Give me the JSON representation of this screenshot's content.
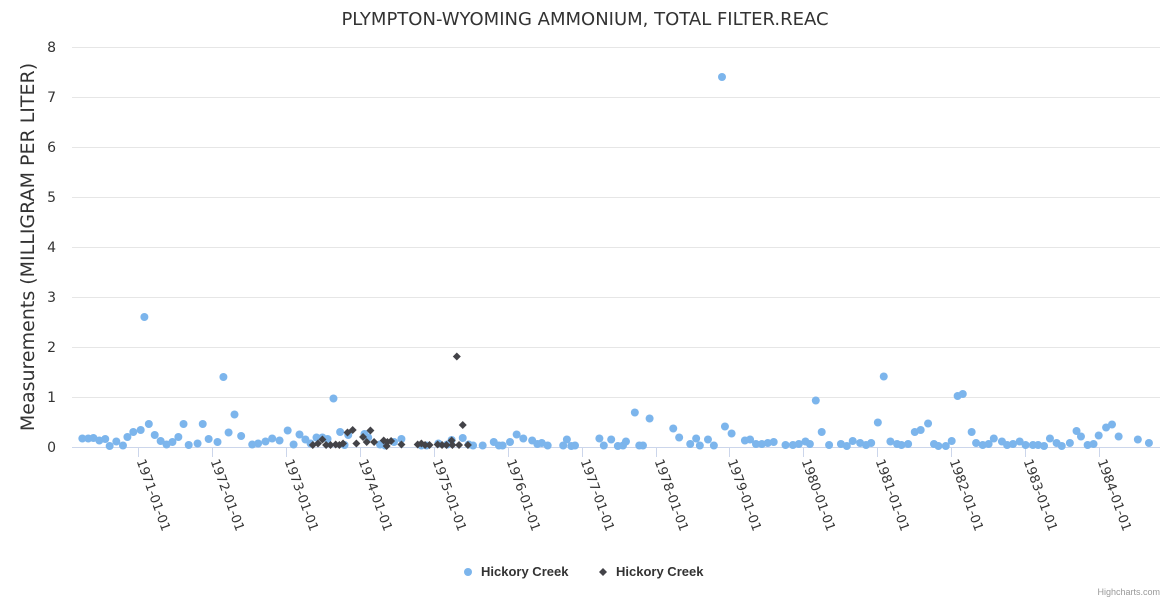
{
  "chart_data": {
    "type": "scatter",
    "title": "PLYMPTON-WYOMING AMMONIUM, TOTAL FILTER.REAC",
    "xlabel": "",
    "ylabel": "Measurements (MILLIGRAM PER LITER)",
    "x_unit": "decimal year",
    "xlim": [
      1970.1,
      1984.83
    ],
    "ylim": [
      0,
      8
    ],
    "yticks": [
      0,
      1,
      2,
      3,
      4,
      5,
      6,
      7,
      8
    ],
    "xticks": [
      1971,
      1972,
      1973,
      1974,
      1975,
      1976,
      1977,
      1978,
      1979,
      1980,
      1981,
      1982,
      1983,
      1984
    ],
    "xtick_labels": [
      "1971-01-01",
      "1972-01-01",
      "1973-01-01",
      "1974-01-01",
      "1975-01-01",
      "1976-01-01",
      "1977-01-01",
      "1978-01-01",
      "1979-01-01",
      "1980-01-01",
      "1981-01-01",
      "1982-01-01",
      "1983-01-01",
      "1984-01-01"
    ],
    "grid": true,
    "legend_placement": "bottom-center",
    "series": [
      {
        "name": "Hickory Creek",
        "color": "#7cb5ec",
        "marker": "circle",
        "points": [
          [
            1970.24,
            0.17
          ],
          [
            1970.32,
            0.17
          ],
          [
            1970.39,
            0.18
          ],
          [
            1970.47,
            0.13
          ],
          [
            1970.55,
            0.16
          ],
          [
            1970.61,
            0.02
          ],
          [
            1970.7,
            0.11
          ],
          [
            1970.79,
            0.03
          ],
          [
            1970.85,
            0.2
          ],
          [
            1970.93,
            0.3
          ],
          [
            1971.03,
            0.34
          ],
          [
            1971.08,
            2.6
          ],
          [
            1971.14,
            0.46
          ],
          [
            1971.22,
            0.24
          ],
          [
            1971.3,
            0.12
          ],
          [
            1971.38,
            0.05
          ],
          [
            1971.46,
            0.1
          ],
          [
            1971.54,
            0.2
          ],
          [
            1971.61,
            0.46
          ],
          [
            1971.68,
            0.04
          ],
          [
            1971.8,
            0.07
          ],
          [
            1971.87,
            0.46
          ],
          [
            1971.95,
            0.16
          ],
          [
            1972.07,
            0.1
          ],
          [
            1972.15,
            1.4
          ],
          [
            1972.22,
            0.29
          ],
          [
            1972.3,
            0.65
          ],
          [
            1972.39,
            0.22
          ],
          [
            1972.54,
            0.05
          ],
          [
            1972.62,
            0.07
          ],
          [
            1972.72,
            0.11
          ],
          [
            1972.81,
            0.17
          ],
          [
            1972.91,
            0.13
          ],
          [
            1973.02,
            0.33
          ],
          [
            1973.1,
            0.05
          ],
          [
            1973.18,
            0.25
          ],
          [
            1973.26,
            0.15
          ],
          [
            1973.33,
            0.07
          ],
          [
            1973.41,
            0.19
          ],
          [
            1973.49,
            0.19
          ],
          [
            1973.56,
            0.16
          ],
          [
            1973.64,
            0.97
          ],
          [
            1973.73,
            0.3
          ],
          [
            1973.79,
            0.04
          ],
          [
            1973.84,
            0.24
          ],
          [
            1974.06,
            0.26
          ],
          [
            1974.11,
            0.19
          ],
          [
            1974.27,
            0.05
          ],
          [
            1974.34,
            0.03
          ],
          [
            1974.46,
            0.1
          ],
          [
            1974.56,
            0.16
          ],
          [
            1974.83,
            0.03
          ],
          [
            1974.9,
            0.03
          ],
          [
            1975.06,
            0.07
          ],
          [
            1975.18,
            0.05
          ],
          [
            1975.24,
            0.14
          ],
          [
            1975.39,
            0.18
          ],
          [
            1975.47,
            0.05
          ],
          [
            1975.53,
            0.03
          ],
          [
            1975.66,
            0.03
          ],
          [
            1975.81,
            0.1
          ],
          [
            1975.88,
            0.03
          ],
          [
            1975.93,
            0.03
          ],
          [
            1976.03,
            0.1
          ],
          [
            1976.12,
            0.25
          ],
          [
            1976.21,
            0.17
          ],
          [
            1976.33,
            0.13
          ],
          [
            1976.4,
            0.06
          ],
          [
            1976.46,
            0.08
          ],
          [
            1976.54,
            0.03
          ],
          [
            1976.75,
            0.03
          ],
          [
            1976.8,
            0.15
          ],
          [
            1976.86,
            0.02
          ],
          [
            1976.91,
            0.03
          ],
          [
            1977.24,
            0.17
          ],
          [
            1977.3,
            0.03
          ],
          [
            1977.4,
            0.15
          ],
          [
            1977.49,
            0.02
          ],
          [
            1977.56,
            0.03
          ],
          [
            1977.6,
            0.11
          ],
          [
            1977.72,
            0.69
          ],
          [
            1977.78,
            0.03
          ],
          [
            1977.83,
            0.03
          ],
          [
            1977.92,
            0.57
          ],
          [
            1978.24,
            0.37
          ],
          [
            1978.32,
            0.19
          ],
          [
            1978.47,
            0.06
          ],
          [
            1978.55,
            0.17
          ],
          [
            1978.6,
            0.03
          ],
          [
            1978.71,
            0.15
          ],
          [
            1978.79,
            0.03
          ],
          [
            1978.9,
            7.4
          ],
          [
            1978.94,
            0.41
          ],
          [
            1979.03,
            0.27
          ],
          [
            1979.21,
            0.13
          ],
          [
            1979.28,
            0.15
          ],
          [
            1979.36,
            0.06
          ],
          [
            1979.44,
            0.06
          ],
          [
            1979.52,
            0.08
          ],
          [
            1979.6,
            0.1
          ],
          [
            1979.76,
            0.04
          ],
          [
            1979.86,
            0.04
          ],
          [
            1979.94,
            0.06
          ],
          [
            1980.03,
            0.11
          ],
          [
            1980.09,
            0.06
          ],
          [
            1980.17,
            0.93
          ],
          [
            1980.25,
            0.3
          ],
          [
            1980.35,
            0.04
          ],
          [
            1980.51,
            0.06
          ],
          [
            1980.59,
            0.02
          ],
          [
            1980.67,
            0.12
          ],
          [
            1980.77,
            0.08
          ],
          [
            1980.85,
            0.04
          ],
          [
            1980.92,
            0.08
          ],
          [
            1981.01,
            0.49
          ],
          [
            1981.09,
            1.41
          ],
          [
            1981.18,
            0.11
          ],
          [
            1981.27,
            0.06
          ],
          [
            1981.33,
            0.04
          ],
          [
            1981.42,
            0.06
          ],
          [
            1981.51,
            0.3
          ],
          [
            1981.59,
            0.34
          ],
          [
            1981.69,
            0.47
          ],
          [
            1981.77,
            0.06
          ],
          [
            1981.83,
            0.02
          ],
          [
            1981.93,
            0.02
          ],
          [
            1982.01,
            0.12
          ],
          [
            1982.09,
            1.02
          ],
          [
            1982.16,
            1.06
          ],
          [
            1982.28,
            0.3
          ],
          [
            1982.34,
            0.08
          ],
          [
            1982.43,
            0.04
          ],
          [
            1982.51,
            0.06
          ],
          [
            1982.58,
            0.17
          ],
          [
            1982.69,
            0.11
          ],
          [
            1982.76,
            0.04
          ],
          [
            1982.84,
            0.06
          ],
          [
            1982.93,
            0.11
          ],
          [
            1983.01,
            0.04
          ],
          [
            1983.11,
            0.04
          ],
          [
            1983.18,
            0.04
          ],
          [
            1983.26,
            0.02
          ],
          [
            1983.34,
            0.17
          ],
          [
            1983.43,
            0.08
          ],
          [
            1983.5,
            0.02
          ],
          [
            1983.61,
            0.08
          ],
          [
            1983.7,
            0.32
          ],
          [
            1983.76,
            0.21
          ],
          [
            1983.85,
            0.04
          ],
          [
            1983.93,
            0.06
          ],
          [
            1984.0,
            0.23
          ],
          [
            1984.1,
            0.39
          ],
          [
            1984.18,
            0.45
          ],
          [
            1984.27,
            0.21
          ],
          [
            1984.53,
            0.15
          ],
          [
            1984.68,
            0.08
          ]
        ]
      },
      {
        "name": "Hickory Creek",
        "color": "#434348",
        "marker": "diamond",
        "points": [
          [
            1973.36,
            0.04
          ],
          [
            1973.43,
            0.07
          ],
          [
            1973.49,
            0.15
          ],
          [
            1973.54,
            0.04
          ],
          [
            1973.6,
            0.04
          ],
          [
            1973.67,
            0.05
          ],
          [
            1973.72,
            0.04
          ],
          [
            1973.77,
            0.07
          ],
          [
            1973.83,
            0.29
          ],
          [
            1973.9,
            0.34
          ],
          [
            1973.95,
            0.07
          ],
          [
            1974.04,
            0.2
          ],
          [
            1974.09,
            0.1
          ],
          [
            1974.14,
            0.33
          ],
          [
            1974.19,
            0.1
          ],
          [
            1974.32,
            0.13
          ],
          [
            1974.36,
            0.02
          ],
          [
            1974.37,
            0.1
          ],
          [
            1974.42,
            0.12
          ],
          [
            1974.56,
            0.05
          ],
          [
            1974.78,
            0.05
          ],
          [
            1974.83,
            0.07
          ],
          [
            1974.88,
            0.04
          ],
          [
            1974.94,
            0.04
          ],
          [
            1975.05,
            0.05
          ],
          [
            1975.11,
            0.04
          ],
          [
            1975.17,
            0.04
          ],
          [
            1975.24,
            0.13
          ],
          [
            1975.25,
            0.04
          ],
          [
            1975.31,
            1.81
          ],
          [
            1975.34,
            0.04
          ],
          [
            1975.39,
            0.44
          ],
          [
            1975.46,
            0.04
          ]
        ]
      }
    ]
  },
  "credits": "Highcharts.com"
}
